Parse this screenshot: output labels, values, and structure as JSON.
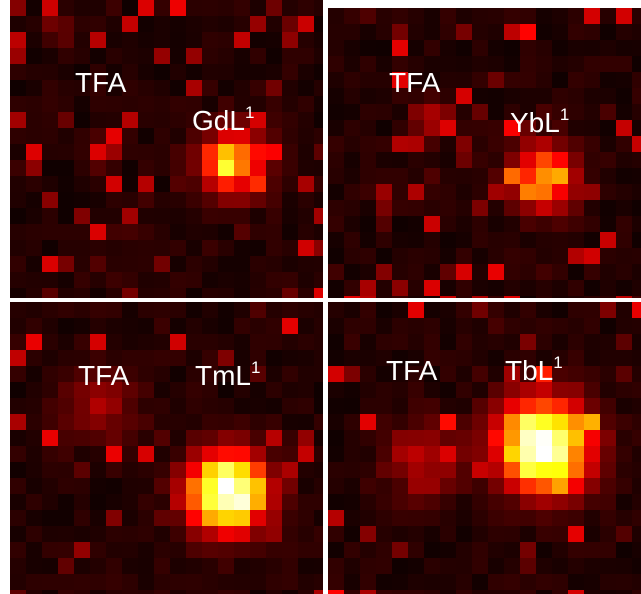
{
  "panels": [
    {
      "reference": "TFA",
      "compound": "GdL",
      "superscript": "1"
    },
    {
      "reference": "TFA",
      "compound": "YbL",
      "superscript": "1"
    },
    {
      "reference": "TFA",
      "compound": "TmL",
      "superscript": "1"
    },
    {
      "reference": "TFA",
      "compound": "TbL",
      "superscript": "1"
    }
  ]
}
